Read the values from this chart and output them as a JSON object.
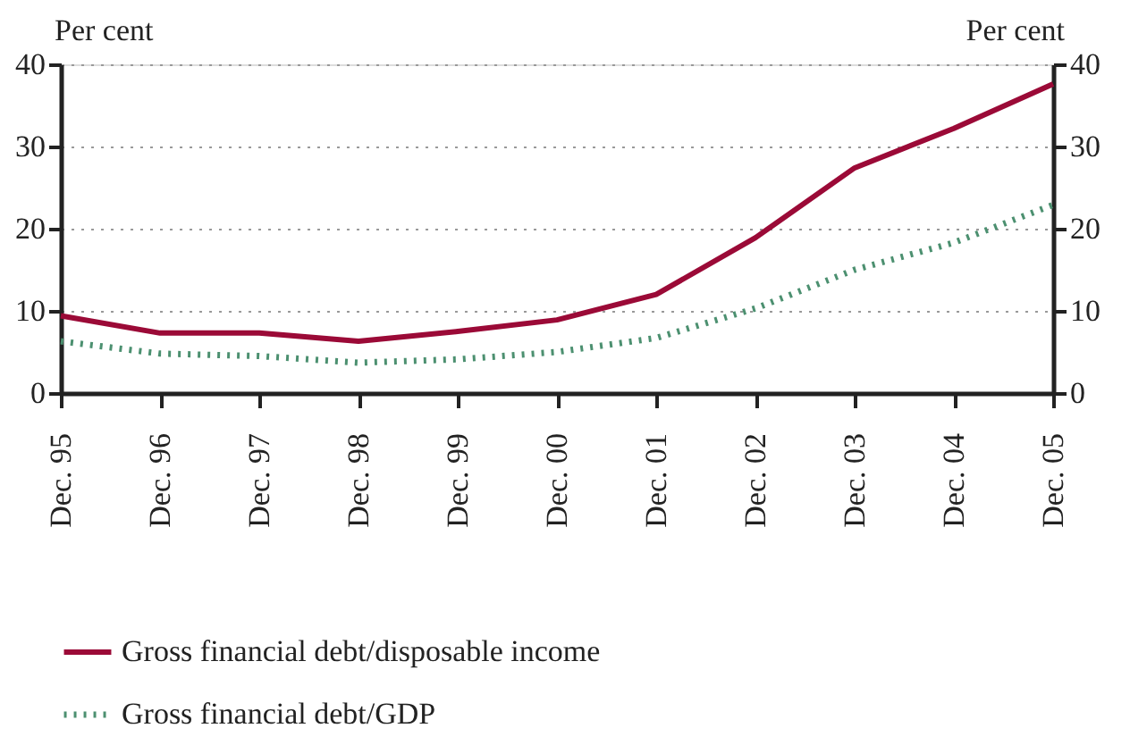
{
  "chart_data": {
    "type": "line",
    "categories": [
      "Dec. 95",
      "Dec. 96",
      "Dec. 97",
      "Dec. 98",
      "Dec. 99",
      "Dec. 00",
      "Dec. 01",
      "Dec. 02",
      "Dec. 03",
      "Dec. 04",
      "Dec. 05"
    ],
    "series": [
      {
        "name": "Gross financial debt/disposable income",
        "color": "#9b0a37",
        "line_style": "solid",
        "values": [
          9.4,
          7.3,
          7.3,
          6.3,
          7.5,
          8.9,
          12.0,
          18.9,
          27.4,
          32.2,
          37.6
        ]
      },
      {
        "name": "Gross financial debt/GDP",
        "color": "#4c9070",
        "line_style": "dotted",
        "values": [
          6.3,
          4.8,
          4.5,
          3.7,
          4.1,
          5.0,
          6.7,
          10.3,
          15.0,
          18.3,
          22.9
        ]
      }
    ],
    "ylabel": "Per cent",
    "y2label": "Per cent",
    "ylim": [
      0,
      40
    ],
    "yticks": [
      0,
      10,
      20,
      30,
      40
    ],
    "y2lim": [
      0,
      40
    ],
    "y2ticks": [
      0,
      10,
      20,
      30,
      40
    ],
    "grid": "y",
    "legend": "bottom",
    "marker": "none"
  }
}
